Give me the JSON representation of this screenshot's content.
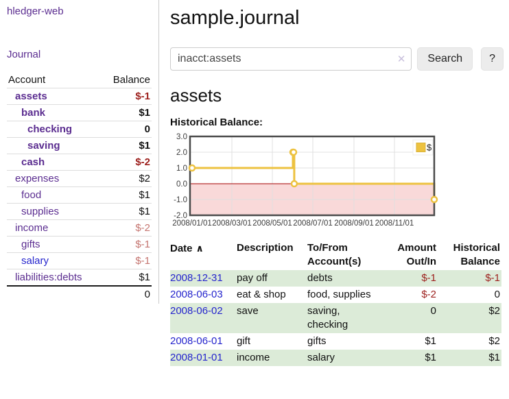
{
  "sidebar": {
    "brand": "hledger-web",
    "journal_link": "Journal",
    "table": {
      "col_account": "Account",
      "col_balance": "Balance",
      "accounts": [
        {
          "name": "assets",
          "level": 1,
          "bold": true,
          "link": "purple",
          "balance": "$-1",
          "tone": "red"
        },
        {
          "name": "bank",
          "level": 2,
          "bold": true,
          "link": "purple",
          "balance": "$1",
          "tone": "black"
        },
        {
          "name": "checking",
          "level": 3,
          "bold": true,
          "link": "purple",
          "balance": "0",
          "tone": "black"
        },
        {
          "name": "saving",
          "level": 3,
          "bold": true,
          "link": "purple",
          "balance": "$1",
          "tone": "black"
        },
        {
          "name": "cash",
          "level": 2,
          "bold": true,
          "link": "purple",
          "balance": "$-2",
          "tone": "red"
        },
        {
          "name": "expenses",
          "level": 1,
          "bold": false,
          "link": "purple",
          "balance": "$2",
          "tone": "black"
        },
        {
          "name": "food",
          "level": 2,
          "bold": false,
          "link": "purple",
          "balance": "$1",
          "tone": "black"
        },
        {
          "name": "supplies",
          "level": 2,
          "bold": false,
          "link": "purple",
          "balance": "$1",
          "tone": "black"
        },
        {
          "name": "income",
          "level": 1,
          "bold": false,
          "link": "purple",
          "balance": "$-2",
          "tone": "rose"
        },
        {
          "name": "gifts",
          "level": 2,
          "bold": false,
          "link": "purple",
          "balance": "$-1",
          "tone": "rose"
        },
        {
          "name": "salary",
          "level": 2,
          "bold": false,
          "link": "blue",
          "balance": "$-1",
          "tone": "rose"
        },
        {
          "name": "liabilities:debts",
          "level": 1,
          "bold": false,
          "link": "purple",
          "balance": "$1",
          "tone": "black"
        }
      ],
      "total": "0"
    }
  },
  "header": {
    "title": "sample.journal"
  },
  "search": {
    "value": "inacct:assets",
    "clear_icon": "✕",
    "button_label": "Search",
    "help_label": "?"
  },
  "account_page": {
    "heading": "assets",
    "chart_label": "Historical Balance:"
  },
  "chart_data": {
    "type": "line",
    "style": "step-after",
    "title": "Historical Balance",
    "legend": "$",
    "legend_position": "top-right",
    "grid": true,
    "ylim": [
      -2.0,
      3.0
    ],
    "y_ticks": [
      "3.0",
      "2.0",
      "1.0",
      "0.0",
      "-1.0",
      "-2.0"
    ],
    "y_tick_values": [
      3,
      2,
      1,
      0,
      -1,
      -2
    ],
    "xlim_days": [
      0,
      365
    ],
    "x_ticks": [
      {
        "day": 0,
        "label": "2008/01/01"
      },
      {
        "day": 60,
        "label": "2008/03/01"
      },
      {
        "day": 121,
        "label": "2008/05/01"
      },
      {
        "day": 182,
        "label": "2008/07/01"
      },
      {
        "day": 244,
        "label": "2008/09/01"
      },
      {
        "day": 305,
        "label": "2008/11/01"
      }
    ],
    "series": [
      {
        "name": "$",
        "color": "#edc240",
        "points": [
          {
            "date": "2008-01-01",
            "day": 0,
            "value": 1
          },
          {
            "date": "2008-06-01",
            "day": 152,
            "value": 2
          },
          {
            "date": "2008-06-02",
            "day": 153,
            "value": 2
          },
          {
            "date": "2008-06-03",
            "day": 154,
            "value": 0
          },
          {
            "date": "2008-12-31",
            "day": 365,
            "value": -1
          }
        ]
      }
    ],
    "colors": {
      "negative_region_fill": "#f9d9d9",
      "zero_line": "#a40000",
      "gridline": "#e0e0e0",
      "plot_border": "#4a4a4a",
      "tick_text": "#3c3c3c"
    }
  },
  "register": {
    "sort_icon": "∧",
    "columns": [
      "Date",
      "Description",
      "To/From Account(s)",
      "Amount Out/In",
      "Historical Balance"
    ],
    "rows": [
      {
        "date": "2008-12-31",
        "description": "pay off",
        "accounts": "debts",
        "amount": "$-1",
        "amount_tone": "red",
        "balance": "$-1",
        "balance_tone": "red"
      },
      {
        "date": "2008-06-03",
        "description": "eat & shop",
        "accounts": "food, supplies",
        "amount": "$-2",
        "amount_tone": "red",
        "balance": "0",
        "balance_tone": "black"
      },
      {
        "date": "2008-06-02",
        "description": "save",
        "accounts": "saving, checking",
        "amount": "0",
        "amount_tone": "black",
        "balance": "$2",
        "balance_tone": "black"
      },
      {
        "date": "2008-06-01",
        "description": "gift",
        "accounts": "gifts",
        "amount": "$1",
        "amount_tone": "black",
        "balance": "$2",
        "balance_tone": "black"
      },
      {
        "date": "2008-01-01",
        "description": "income",
        "accounts": "salary",
        "amount": "$1",
        "amount_tone": "black",
        "balance": "$1",
        "balance_tone": "black"
      }
    ]
  }
}
